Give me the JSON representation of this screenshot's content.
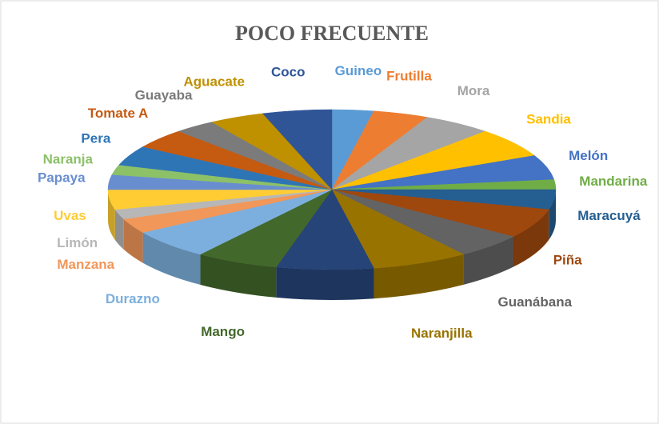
{
  "chart_data": {
    "type": "pie3d",
    "title": "POCO FRECUENTE",
    "categories": [
      "Guineo",
      "Frutilla",
      "Mora",
      "Sandia",
      "Melón",
      "Mandarina",
      "Maracuyá",
      "Piña",
      "Guanábana",
      "Naranjilla",
      null,
      "Mango",
      "Durazno",
      "Manzana",
      "Limón",
      "Uvas",
      "Papaya",
      "Naranja",
      "Pera",
      "Tomate A",
      "Guayaba",
      "Aguacate",
      "Coco"
    ],
    "values": [
      3,
      4,
      5,
      6,
      5,
      2,
      4,
      6,
      5,
      7,
      7,
      6,
      6,
      3,
      2,
      4,
      3,
      2,
      4,
      4,
      3,
      4,
      5
    ],
    "colors": [
      "#5b9bd5",
      "#ed7d31",
      "#a5a5a5",
      "#ffc000",
      "#4472c4",
      "#70ad47",
      "#255e91",
      "#9e480e",
      "#636363",
      "#997300",
      "#264478",
      "#43682b",
      "#7cafdd",
      "#f1975a",
      "#b7b7b7",
      "#ffcd33",
      "#698ed0",
      "#8cc168",
      "#2e75b6",
      "#c55a11",
      "#7b7b7b",
      "#bf9000",
      "#2f5597"
    ]
  }
}
